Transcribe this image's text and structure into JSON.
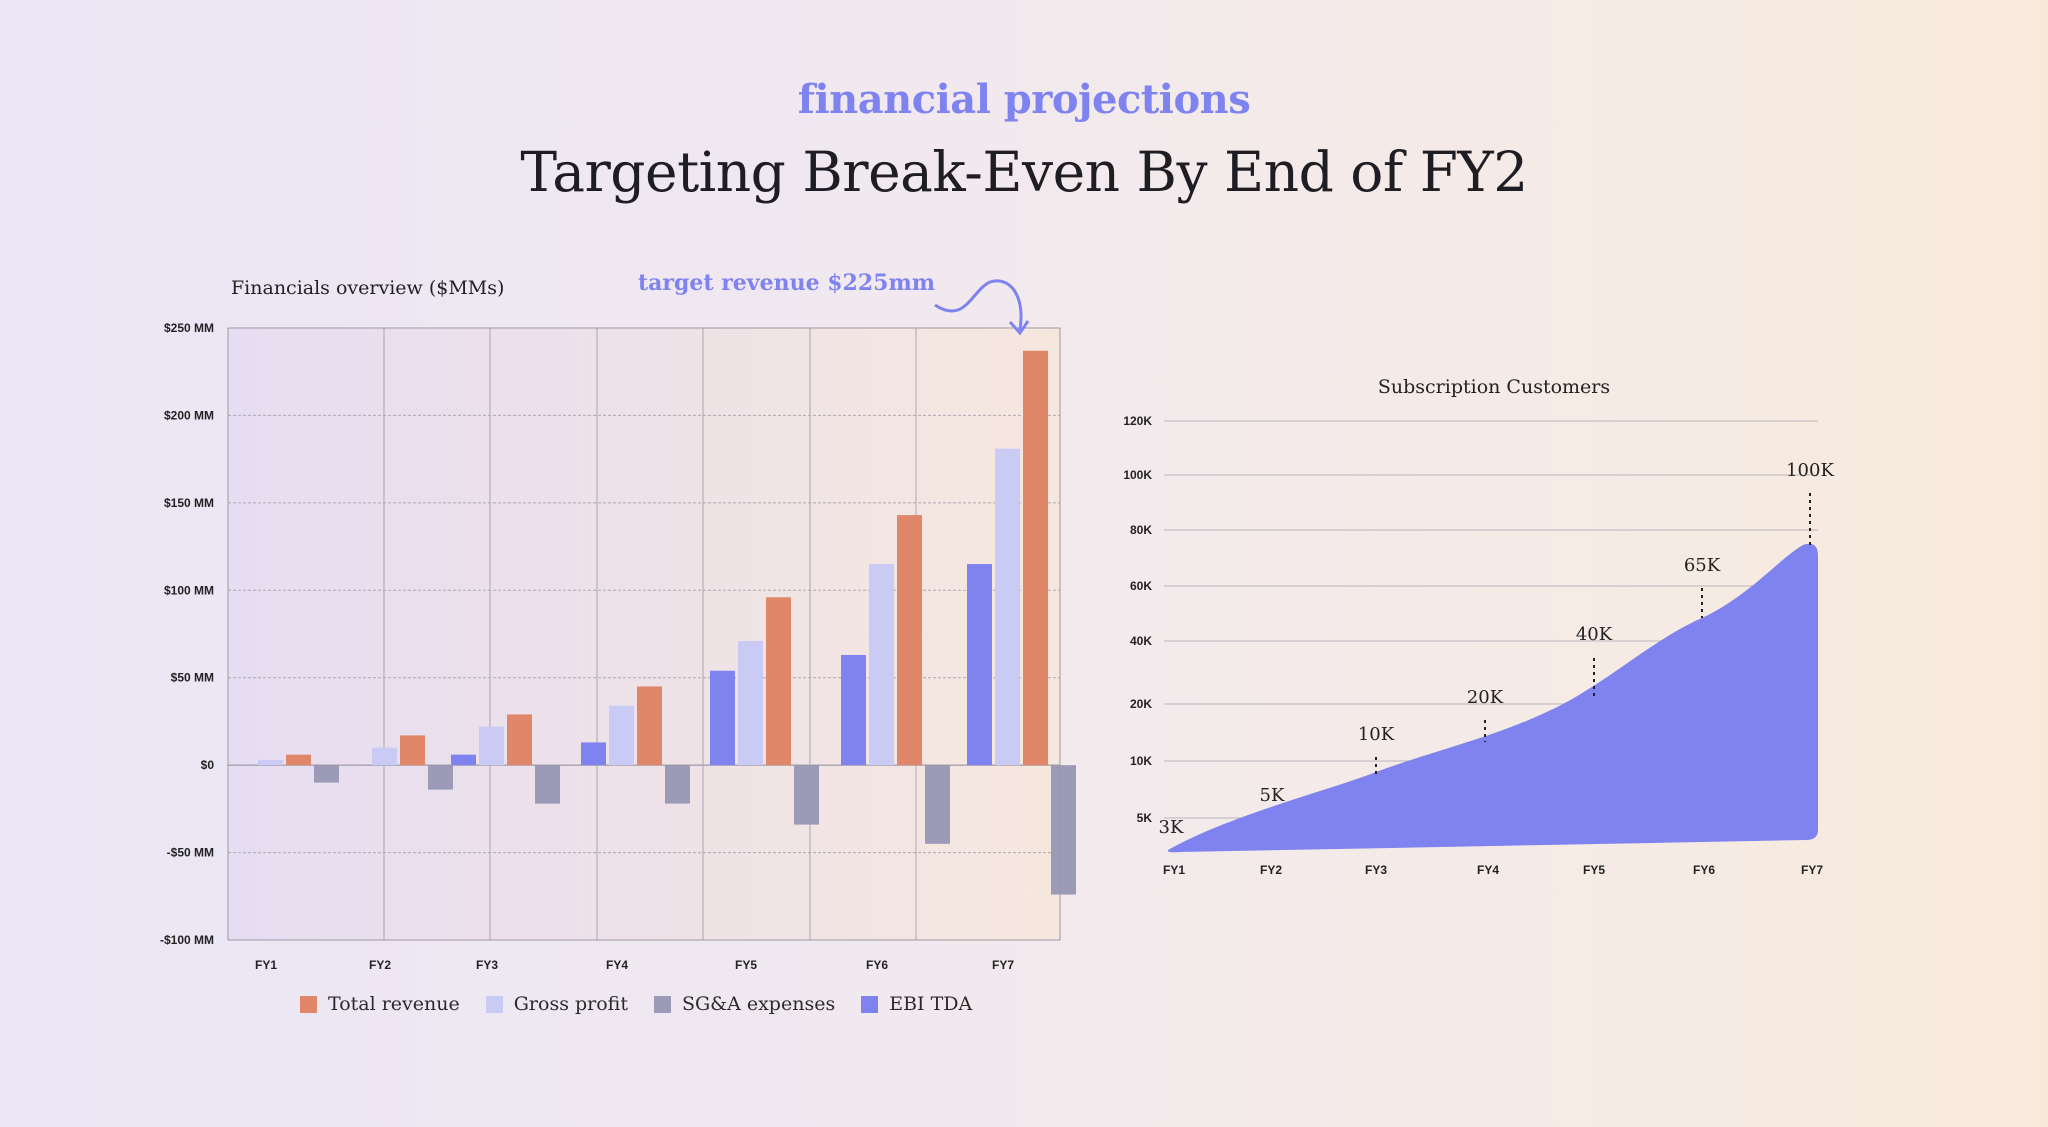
{
  "header": {
    "kicker": "financial projections",
    "title": "Targeting Break-Even By End of FY2"
  },
  "colors": {
    "accent": "#7f83ef",
    "total_revenue": "#e0876a",
    "gross_profit": "#c9cbf4",
    "sga": "#9b9bb8",
    "ebitda": "#7f83ef"
  },
  "annotation": {
    "text": "target revenue $225mm"
  },
  "chart_data": [
    {
      "type": "bar",
      "title": "Financials overview ($MMs)",
      "categories": [
        "FY1",
        "FY2",
        "FY3",
        "FY4",
        "FY5",
        "FY6",
        "FY7"
      ],
      "ylim": [
        -100,
        250
      ],
      "yticks": [
        {
          "value": 250,
          "label": "$250 MM"
        },
        {
          "value": 200,
          "label": "$200 MM"
        },
        {
          "value": 150,
          "label": "$150 MM"
        },
        {
          "value": 100,
          "label": "$100 MM"
        },
        {
          "value": 50,
          "label": "$50 MM"
        },
        {
          "value": 0,
          "label": "$0"
        },
        {
          "value": -50,
          "label": "-$50 MM"
        },
        {
          "value": -100,
          "label": "-$100 MM"
        }
      ],
      "series": [
        {
          "name": "EBI TDA",
          "key": "ebitda",
          "values": [
            0,
            0,
            6,
            13,
            54,
            63,
            115
          ]
        },
        {
          "name": "Gross profit",
          "key": "gross_profit",
          "values": [
            3,
            10,
            22,
            34,
            71,
            115,
            181
          ]
        },
        {
          "name": "Total revenue",
          "key": "total_revenue",
          "values": [
            6,
            17,
            29,
            45,
            96,
            143,
            237
          ]
        },
        {
          "name": "SG&A expenses",
          "key": "sga",
          "values": [
            -10,
            -14,
            -22,
            -22,
            -34,
            -45,
            -74
          ]
        }
      ],
      "legend": [
        {
          "name": "Total revenue",
          "key": "total_revenue"
        },
        {
          "name": "Gross profit",
          "key": "gross_profit"
        },
        {
          "name": "SG&A expenses",
          "key": "sga"
        },
        {
          "name": "EBI TDA",
          "key": "ebitda"
        }
      ]
    },
    {
      "type": "area",
      "title": "Subscription Customers",
      "x": [
        "FY1",
        "FY2",
        "FY3",
        "FY4",
        "FY5",
        "FY6",
        "FY7"
      ],
      "values": [
        3,
        5,
        10,
        20,
        40,
        65,
        100
      ],
      "value_labels": [
        "3K",
        "5K",
        "10K",
        "20K",
        "40K",
        "65K",
        "100K"
      ],
      "yticks": [
        "120K",
        "100K",
        "80K",
        "60K",
        "40K",
        "20K",
        "10K",
        "5K"
      ]
    }
  ]
}
